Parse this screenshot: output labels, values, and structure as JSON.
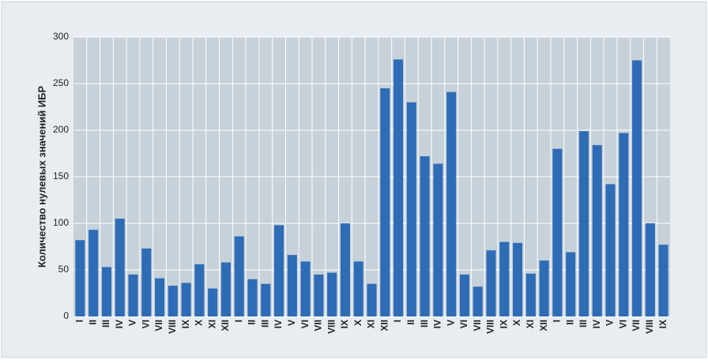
{
  "chart_data": {
    "type": "bar",
    "y_axis_label": "Количество нулевых значений ИБР",
    "categories": [
      "I",
      "II",
      "III",
      "IV",
      "V",
      "VI",
      "VII",
      "VIII",
      "IX",
      "X",
      "XI",
      "XII",
      "I",
      "II",
      "III",
      "IV",
      "V",
      "VI",
      "VII",
      "VIII",
      "IX",
      "X",
      "XI",
      "XII",
      "I",
      "II",
      "III",
      "IV",
      "V",
      "VI",
      "VII",
      "VIII",
      "IX",
      "X",
      "XI",
      "XII",
      "I",
      "II",
      "III",
      "IV",
      "V",
      "VI",
      "VII",
      "VIII",
      "IX"
    ],
    "values": [
      82,
      93,
      53,
      105,
      45,
      73,
      41,
      33,
      36,
      56,
      30,
      58,
      86,
      40,
      35,
      98,
      66,
      59,
      45,
      47,
      100,
      59,
      35,
      245,
      276,
      230,
      172,
      164,
      241,
      45,
      32,
      71,
      80,
      79,
      46,
      60,
      180,
      69,
      199,
      184,
      142,
      197,
      275,
      100,
      77
    ],
    "color": "#2e6cb6",
    "ylim": [
      0,
      300
    ],
    "yticks": [
      0,
      50,
      100,
      150,
      200,
      250,
      300
    ],
    "grid": true
  }
}
